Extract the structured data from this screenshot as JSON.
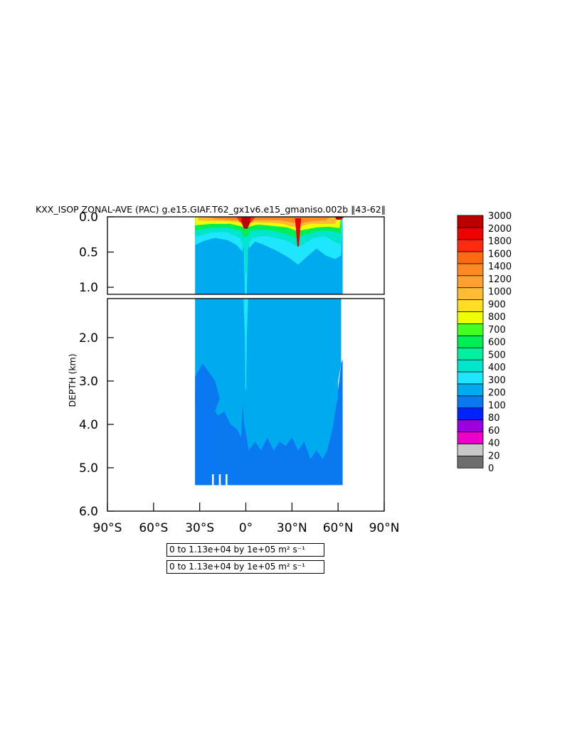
{
  "chart_data": {
    "type": "heatmap",
    "title": "KXX_ISOP ZONAL-AVE (PAC) g.e15.GIAF.T62_gx1v6.e15_gmaniso.002b ‖43-62‖",
    "xlabel": "",
    "ylabel": "DEPTH (km)",
    "x_ticks": [
      "90°S",
      "60°S",
      "30°S",
      "0°",
      "30°N",
      "60°N",
      "90°N"
    ],
    "x_tick_values": [
      -90,
      -60,
      -30,
      0,
      30,
      60,
      90
    ],
    "xlim": [
      -90,
      90
    ],
    "upper_panel": {
      "ylim": [
        0.0,
        1.1
      ],
      "y_ticks": [
        "0.0",
        "0.5",
        "1.0"
      ],
      "y_tick_values": [
        0.0,
        0.5,
        1.0
      ]
    },
    "lower_panel": {
      "ylim": [
        1.1,
        6.0
      ],
      "y_ticks": [
        "2.0",
        "3.0",
        "4.0",
        "5.0",
        "6.0"
      ],
      "y_tick_values": [
        2.0,
        3.0,
        4.0,
        5.0,
        6.0
      ]
    },
    "levels": [
      0,
      20,
      40,
      60,
      80,
      100,
      200,
      300,
      400,
      500,
      600,
      700,
      800,
      900,
      1000,
      1200,
      1400,
      1600,
      1800,
      2000,
      3000
    ],
    "level_labels": [
      "0",
      "20",
      "40",
      "60",
      "80",
      "100",
      "200",
      "300",
      "400",
      "500",
      "600",
      "700",
      "800",
      "900",
      "1000",
      "1200",
      "1400",
      "1600",
      "1800",
      "2000",
      "3000"
    ],
    "level_colors": [
      "#6e6e6e",
      "#c8c8c8",
      "#ee00cc",
      "#9a00dd",
      "#0022ff",
      "#0a78f0",
      "#00aaee",
      "#1ee6ff",
      "#00e6cc",
      "#00f0a0",
      "#00ee55",
      "#44ff22",
      "#eeff00",
      "#ffdd22",
      "#ffbb33",
      "#ffa030",
      "#ff8a22",
      "#ff6a10",
      "#ff2a10",
      "#ee0000",
      "#bb0000"
    ],
    "data_x_range": [
      -33,
      63
    ],
    "value_min": 0,
    "value_max": 11300,
    "scale_factor": 100000,
    "units": "m² s⁻¹",
    "info_lines": [
      "0 to 1.13e+04 by 1e+05 m² s⁻¹",
      "0 to 1.13e+04 by 1e+05 m² s⁻¹"
    ]
  }
}
